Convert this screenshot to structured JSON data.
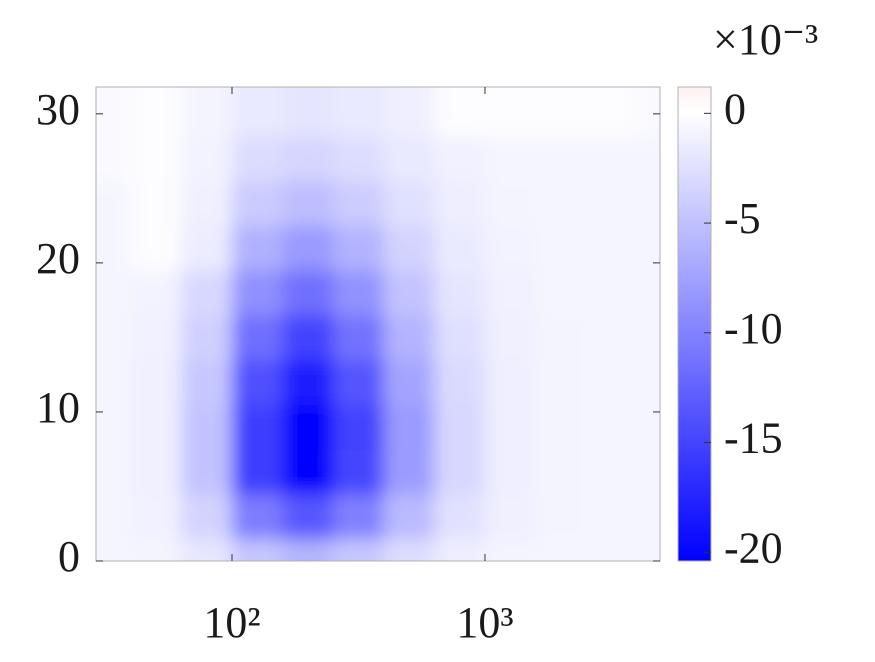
{
  "chart_data": {
    "type": "contour",
    "x": [
      32,
      50,
      79,
      126,
      200,
      316,
      501,
      794,
      1259,
      1995,
      3162,
      5012
    ],
    "y": [
      0,
      3,
      6,
      9,
      12,
      15,
      18,
      21,
      24,
      27,
      30
    ],
    "z": [
      [
        -0.8,
        -0.9,
        -1.9,
        -4.6,
        -5.9,
        -4.5,
        -2.7,
        -1.4,
        -0.9,
        -0.8,
        -0.8,
        -0.8
      ],
      [
        -0.8,
        -1.1,
        -3.5,
        -10.4,
        -13.5,
        -10.2,
        -5.5,
        -2.4,
        -1.2,
        -0.9,
        -0.8,
        -0.8
      ],
      [
        -0.8,
        -1.2,
        -4.9,
        -15.4,
        -20.1,
        -15.0,
        -8.0,
        -3.2,
        -1.3,
        -0.9,
        -0.8,
        -0.8
      ],
      [
        -0.8,
        -1.2,
        -4.9,
        -15.5,
        -20.2,
        -15.1,
        -8.1,
        -3.2,
        -1.3,
        -0.9,
        -0.8,
        -0.8
      ],
      [
        -0.8,
        -1.2,
        -4.5,
        -14.0,
        -18.2,
        -13.6,
        -7.3,
        -3.0,
        -1.3,
        -0.9,
        -0.8,
        -0.8
      ],
      [
        -0.8,
        -1.1,
        -3.8,
        -11.6,
        -15.1,
        -11.3,
        -6.1,
        -2.6,
        -1.2,
        -0.9,
        -0.8,
        -0.8
      ],
      [
        -0.8,
        -1.0,
        -3.1,
        -8.9,
        -11.5,
        -8.7,
        -4.8,
        -2.1,
        -1.1,
        -0.8,
        -0.8,
        -0.8
      ],
      [
        -0.8,
        -0.2,
        -1.5,
        -6.3,
        -8.1,
        -6.2,
        -3.5,
        -1.7,
        -1.0,
        -0.8,
        -0.8,
        -0.8
      ],
      [
        -0.8,
        -0.2,
        -1.2,
        -4.2,
        -5.3,
        -4.1,
        -2.5,
        -1.4,
        -0.9,
        -0.8,
        -0.8,
        -0.8
      ],
      [
        -0.5,
        -0.2,
        -1.0,
        -2.8,
        -3.4,
        -2.7,
        -1.8,
        -1.1,
        -0.8,
        -0.8,
        -0.8,
        -0.8
      ],
      [
        -0.5,
        -0.2,
        -0.9,
        -1.8,
        -2.1,
        -1.8,
        -1.3,
        -0.2,
        -0.2,
        -0.2,
        -0.2,
        -0.5
      ]
    ],
    "xscale": "log",
    "xlim": [
      29,
      4920
    ],
    "ylim": [
      0,
      31.8
    ],
    "xticks": [
      {
        "value": 100,
        "label": "10²"
      },
      {
        "value": 1000,
        "label": "10³"
      }
    ],
    "yticks": [
      0,
      10,
      20,
      30
    ],
    "colors": {
      "negative": "#0000ff",
      "zero": "#ffffff",
      "positive": "#ff0000"
    },
    "colorbar": {
      "clim": [
        -20.4,
        1.2
      ],
      "ticks": [
        0,
        -5,
        -10,
        -15,
        -20
      ],
      "scale_label": "×10⁻³"
    }
  }
}
